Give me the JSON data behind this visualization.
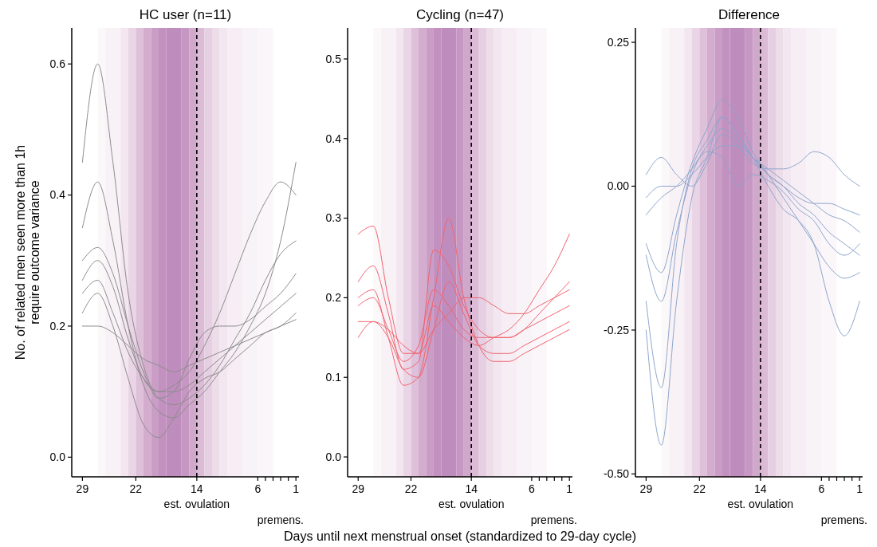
{
  "chart_data": [
    {
      "type": "line",
      "title": "HC user (n=11)",
      "ylabel": "No. of related men seen more than 1h\nrequire outcome variance",
      "xlim": [
        30.4,
        0.6
      ],
      "xticks": [
        29,
        22,
        14,
        6,
        {
          "value": 5,
          "label": null
        },
        {
          "value": 4,
          "label": null
        },
        {
          "value": 3,
          "label": null
        },
        {
          "value": 2,
          "label": null
        },
        1
      ],
      "ylim": [
        -0.03,
        0.655
      ],
      "yticks": [
        {
          "value": 0,
          "label": "0.0"
        },
        {
          "value": 0.2,
          "label": "0.2"
        },
        {
          "value": 0.4,
          "label": "0.4"
        },
        {
          "value": 0.6,
          "label": "0.6"
        }
      ],
      "x": [
        29,
        27,
        25,
        23,
        21,
        19,
        17,
        15,
        13,
        11,
        9,
        7,
        5,
        3,
        1
      ],
      "series": [
        {
          "color": "#8c8c8c",
          "values": [
            0.25,
            0.27,
            0.22,
            0.16,
            0.12,
            0.1,
            0.1,
            0.11,
            0.13,
            0.15,
            0.17,
            0.19,
            0.21,
            0.23,
            0.25
          ]
        },
        {
          "color": "#8c8c8c",
          "values": [
            0.45,
            0.6,
            0.45,
            0.25,
            0.14,
            0.09,
            0.08,
            0.09,
            0.11,
            0.14,
            0.18,
            0.22,
            0.27,
            0.31,
            0.33
          ]
        },
        {
          "color": "#8c8c8c",
          "values": [
            0.35,
            0.42,
            0.33,
            0.2,
            0.11,
            0.07,
            0.06,
            0.08,
            0.1,
            0.13,
            0.16,
            0.2,
            0.25,
            0.33,
            0.45
          ]
        },
        {
          "color": "#8c8c8c",
          "values": [
            0.2,
            0.2,
            0.19,
            0.17,
            0.15,
            0.14,
            0.13,
            0.14,
            0.15,
            0.16,
            0.17,
            0.18,
            0.19,
            0.2,
            0.21
          ]
        },
        {
          "color": "#8c8c8c",
          "values": [
            0.3,
            0.32,
            0.28,
            0.2,
            0.13,
            0.09,
            0.1,
            0.15,
            0.19,
            0.2,
            0.2,
            0.21,
            0.23,
            0.25,
            0.28
          ]
        },
        {
          "color": "#8c8c8c",
          "values": [
            0.22,
            0.25,
            0.2,
            0.12,
            0.05,
            0.03,
            0.06,
            0.1,
            0.12,
            0.13,
            0.15,
            0.17,
            0.19,
            0.2,
            0.22
          ]
        },
        {
          "color": "#8c8c8c",
          "values": [
            0.27,
            0.3,
            0.26,
            0.18,
            0.12,
            0.1,
            0.11,
            0.13,
            0.17,
            0.22,
            0.28,
            0.34,
            0.39,
            0.42,
            0.4
          ]
        }
      ],
      "bands": [
        {
          "axis": "x",
          "from": 27,
          "to": 26,
          "color": "#fbf8fa"
        },
        {
          "axis": "x",
          "from": 26,
          "to": 24,
          "color": "#f8f2f7"
        },
        {
          "axis": "x",
          "from": 24,
          "to": 23,
          "color": "#f3e6f0"
        },
        {
          "axis": "x",
          "from": 23,
          "to": 22,
          "color": "#ead5e6"
        },
        {
          "axis": "x",
          "from": 22,
          "to": 21,
          "color": "#dfc0da"
        },
        {
          "axis": "x",
          "from": 21,
          "to": 20,
          "color": "#d3acce"
        },
        {
          "axis": "x",
          "from": 20,
          "to": 19,
          "color": "#c99dc5"
        },
        {
          "axis": "x",
          "from": 19,
          "to": 18,
          "color": "#c291bf"
        },
        {
          "axis": "x",
          "from": 18,
          "to": 16,
          "color": "#bf8dbd"
        },
        {
          "axis": "x",
          "from": 16,
          "to": 15,
          "color": "#c697c3"
        },
        {
          "axis": "x",
          "from": 15,
          "to": 14,
          "color": "#d0a8cb"
        },
        {
          "axis": "x",
          "from": 14,
          "to": 13,
          "color": "#dcbbd7"
        },
        {
          "axis": "x",
          "from": 13,
          "to": 12,
          "color": "#e6cfe2"
        },
        {
          "axis": "x",
          "from": 12,
          "to": 11,
          "color": "#eddde9"
        },
        {
          "axis": "x",
          "from": 11,
          "to": 10,
          "color": "#f2e7f0"
        },
        {
          "axis": "x",
          "from": 10,
          "to": 8,
          "color": "#f6eef4"
        },
        {
          "axis": "x",
          "from": 8,
          "to": 6,
          "color": "#f8f3f7"
        },
        {
          "axis": "x",
          "from": 6,
          "to": 4,
          "color": "#faf6f9"
        }
      ],
      "ref_lines": [
        {
          "axis": "x",
          "value": 14,
          "label": "est. ovulation",
          "color": "#000000",
          "line_style": "dashed"
        }
      ],
      "annotations": [
        "premens."
      ]
    },
    {
      "type": "line",
      "title": "Cycling (n=47)",
      "xlabel": "Days until next menstrual onset (standardized to 29-day cycle)",
      "xlim": [
        30.4,
        0.6
      ],
      "xticks": [
        29,
        22,
        14,
        6,
        {
          "value": 5,
          "label": null
        },
        {
          "value": 4,
          "label": null
        },
        {
          "value": 3,
          "label": null
        },
        {
          "value": 2,
          "label": null
        },
        1
      ],
      "ylim": [
        -0.025,
        0.539
      ],
      "yticks": [
        {
          "value": 0,
          "label": "0.0"
        },
        {
          "value": 0.1,
          "label": "0.1"
        },
        {
          "value": 0.2,
          "label": "0.2"
        },
        {
          "value": 0.3,
          "label": "0.3"
        },
        {
          "value": 0.4,
          "label": "0.4"
        },
        {
          "value": 0.5,
          "label": "0.5"
        }
      ],
      "x": [
        29,
        27,
        25,
        23,
        21,
        19,
        17,
        15,
        13,
        11,
        9,
        7,
        5,
        3,
        1
      ],
      "series": [
        {
          "color": "#f06470",
          "values": [
            0.19,
            0.2,
            0.16,
            0.12,
            0.14,
            0.21,
            0.19,
            0.16,
            0.15,
            0.15,
            0.15,
            0.16,
            0.17,
            0.18,
            0.19
          ]
        },
        {
          "color": "#f06470",
          "values": [
            0.28,
            0.29,
            0.2,
            0.13,
            0.13,
            0.19,
            0.17,
            0.15,
            0.14,
            0.15,
            0.16,
            0.18,
            0.21,
            0.24,
            0.28
          ]
        },
        {
          "color": "#f06470",
          "values": [
            0.15,
            0.17,
            0.15,
            0.11,
            0.1,
            0.16,
            0.22,
            0.18,
            0.14,
            0.13,
            0.13,
            0.14,
            0.15,
            0.16,
            0.17
          ]
        },
        {
          "color": "#f06470",
          "values": [
            0.22,
            0.24,
            0.18,
            0.11,
            0.12,
            0.26,
            0.24,
            0.19,
            0.16,
            0.15,
            0.15,
            0.16,
            0.18,
            0.2,
            0.22
          ]
        },
        {
          "color": "#f06470",
          "values": [
            0.17,
            0.17,
            0.16,
            0.14,
            0.13,
            0.16,
            0.18,
            0.2,
            0.2,
            0.19,
            0.18,
            0.18,
            0.19,
            0.2,
            0.21
          ]
        },
        {
          "color": "#f06470",
          "values": [
            0.2,
            0.21,
            0.15,
            0.09,
            0.1,
            0.2,
            0.3,
            0.2,
            0.14,
            0.12,
            0.12,
            0.13,
            0.14,
            0.15,
            0.16
          ]
        }
      ],
      "bands": [
        {
          "axis": "x",
          "from": 27,
          "to": 26,
          "color": "#fbf8fa"
        },
        {
          "axis": "x",
          "from": 26,
          "to": 24,
          "color": "#f8f2f7"
        },
        {
          "axis": "x",
          "from": 24,
          "to": 23,
          "color": "#f3e6f0"
        },
        {
          "axis": "x",
          "from": 23,
          "to": 22,
          "color": "#ead5e6"
        },
        {
          "axis": "x",
          "from": 22,
          "to": 21,
          "color": "#dfc0da"
        },
        {
          "axis": "x",
          "from": 21,
          "to": 20,
          "color": "#d3acce"
        },
        {
          "axis": "x",
          "from": 20,
          "to": 19,
          "color": "#c99dc5"
        },
        {
          "axis": "x",
          "from": 19,
          "to": 18,
          "color": "#c291bf"
        },
        {
          "axis": "x",
          "from": 18,
          "to": 16,
          "color": "#bf8dbd"
        },
        {
          "axis": "x",
          "from": 16,
          "to": 15,
          "color": "#c697c3"
        },
        {
          "axis": "x",
          "from": 15,
          "to": 14,
          "color": "#d0a8cb"
        },
        {
          "axis": "x",
          "from": 14,
          "to": 13,
          "color": "#dcbbd7"
        },
        {
          "axis": "x",
          "from": 13,
          "to": 12,
          "color": "#e6cfe2"
        },
        {
          "axis": "x",
          "from": 12,
          "to": 11,
          "color": "#eddde9"
        },
        {
          "axis": "x",
          "from": 11,
          "to": 10,
          "color": "#f2e7f0"
        },
        {
          "axis": "x",
          "from": 10,
          "to": 8,
          "color": "#f6eef4"
        },
        {
          "axis": "x",
          "from": 8,
          "to": 6,
          "color": "#f8f3f7"
        },
        {
          "axis": "x",
          "from": 6,
          "to": 4,
          "color": "#faf6f9"
        }
      ],
      "ref_lines": [
        {
          "axis": "x",
          "value": 14,
          "label": "est. ovulation",
          "color": "#000000",
          "line_style": "dashed"
        }
      ],
      "annotations": [
        "premens."
      ]
    },
    {
      "type": "line",
      "title": "Difference",
      "xlim": [
        30.4,
        0.6
      ],
      "xticks": [
        29,
        22,
        14,
        6,
        {
          "value": 5,
          "label": null
        },
        {
          "value": 4,
          "label": null
        },
        {
          "value": 3,
          "label": null
        },
        {
          "value": 2,
          "label": null
        },
        1
      ],
      "ylim": [
        -0.505,
        0.275
      ],
      "yticks": [
        {
          "value": 0.25,
          "label": "0.25"
        },
        {
          "value": 0,
          "label": "0.00"
        },
        {
          "value": -0.25,
          "label": "-0.25"
        },
        {
          "value": -0.5,
          "label": "-0.50"
        }
      ],
      "x": [
        29,
        27,
        25,
        23,
        21,
        19,
        17,
        15,
        13,
        11,
        9,
        7,
        5,
        3,
        1
      ],
      "series": [
        {
          "color": "#8ea5cc",
          "values": [
            -0.05,
            -0.02,
            0,
            0.03,
            0.07,
            0.1,
            0.08,
            0.05,
            0.03,
            0.01,
            -0.01,
            -0.03,
            -0.05,
            -0.06,
            -0.08
          ]
        },
        {
          "color": "#8ea5cc",
          "values": [
            -0.1,
            -0.15,
            -0.05,
            0.04,
            0.1,
            0.15,
            0.12,
            0.06,
            0.02,
            -0.02,
            -0.06,
            -0.1,
            -0.14,
            -0.16,
            -0.15
          ]
        },
        {
          "color": "#8ea5cc",
          "values": [
            0.02,
            0.05,
            0.02,
            0.0,
            0.04,
            0.09,
            0.07,
            0.04,
            0.03,
            0.03,
            0.04,
            0.06,
            0.05,
            0.02,
            0
          ]
        },
        {
          "color": "#8ea5cc",
          "values": [
            -0.2,
            -0.35,
            -0.1,
            0.03,
            0.08,
            0.12,
            0.09,
            0.05,
            0.0,
            -0.04,
            -0.06,
            -0.1,
            -0.2,
            -0.26,
            -0.2
          ]
        },
        {
          "color": "#8ea5cc",
          "values": [
            -0.02,
            0.0,
            0.0,
            0.02,
            0.05,
            0.07,
            0.07,
            0.05,
            0.02,
            0.0,
            -0.02,
            -0.03,
            -0.03,
            -0.04,
            -0.05
          ]
        },
        {
          "color": "#8ea5cc",
          "values": [
            -0.12,
            -0.2,
            -0.08,
            0.02,
            0.06,
            0.05,
            0.0,
            0.02,
            0.01,
            -0.01,
            -0.04,
            -0.06,
            -0.1,
            -0.12,
            -0.1
          ]
        },
        {
          "color": "#8ea5cc",
          "values": [
            -0.25,
            -0.45,
            -0.2,
            -0.02,
            0.05,
            0.12,
            0.09,
            0.05,
            0.02,
            0.0,
            -0.03,
            -0.05,
            -0.08,
            -0.1,
            -0.12
          ]
        }
      ],
      "bands": [
        {
          "axis": "x",
          "from": 27,
          "to": 26,
          "color": "#fbf8fa"
        },
        {
          "axis": "x",
          "from": 26,
          "to": 24,
          "color": "#f8f2f7"
        },
        {
          "axis": "x",
          "from": 24,
          "to": 23,
          "color": "#f3e6f0"
        },
        {
          "axis": "x",
          "from": 23,
          "to": 22,
          "color": "#ead5e6"
        },
        {
          "axis": "x",
          "from": 22,
          "to": 21,
          "color": "#dfc0da"
        },
        {
          "axis": "x",
          "from": 21,
          "to": 20,
          "color": "#d3acce"
        },
        {
          "axis": "x",
          "from": 20,
          "to": 19,
          "color": "#c99dc5"
        },
        {
          "axis": "x",
          "from": 19,
          "to": 18,
          "color": "#c291bf"
        },
        {
          "axis": "x",
          "from": 18,
          "to": 16,
          "color": "#bf8dbd"
        },
        {
          "axis": "x",
          "from": 16,
          "to": 15,
          "color": "#c697c3"
        },
        {
          "axis": "x",
          "from": 15,
          "to": 14,
          "color": "#d0a8cb"
        },
        {
          "axis": "x",
          "from": 14,
          "to": 13,
          "color": "#dcbbd7"
        },
        {
          "axis": "x",
          "from": 13,
          "to": 12,
          "color": "#e6cfe2"
        },
        {
          "axis": "x",
          "from": 12,
          "to": 11,
          "color": "#eddde9"
        },
        {
          "axis": "x",
          "from": 11,
          "to": 10,
          "color": "#f2e7f0"
        },
        {
          "axis": "x",
          "from": 10,
          "to": 8,
          "color": "#f6eef4"
        },
        {
          "axis": "x",
          "from": 8,
          "to": 6,
          "color": "#f8f3f7"
        },
        {
          "axis": "x",
          "from": 6,
          "to": 4,
          "color": "#faf6f9"
        }
      ],
      "ref_lines": [
        {
          "axis": "x",
          "value": 14,
          "label": "est. ovulation",
          "color": "#000000",
          "line_style": "dashed"
        }
      ],
      "annotations": [
        "premens."
      ]
    }
  ]
}
